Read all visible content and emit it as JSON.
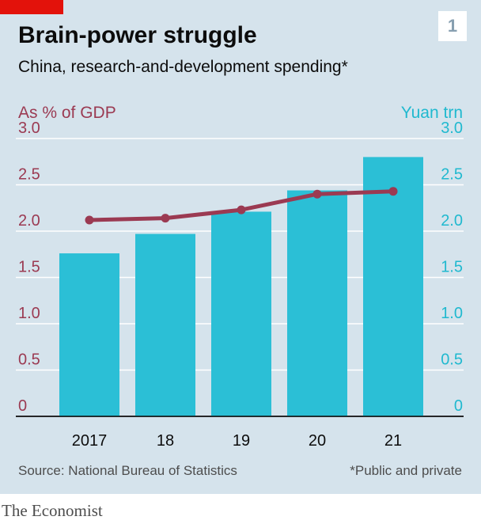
{
  "header": {
    "title": "Brain-power struggle",
    "subtitle": "China, research-and-development spending*",
    "chart_number": "1"
  },
  "footer": {
    "source": "Source: National Bureau of Statistics",
    "footnote": "*Public and private",
    "brand": "The Economist"
  },
  "colors": {
    "accent_red": "#e3120b",
    "panel_background": "#d5e3ec",
    "bar": "#2bbfd6",
    "line": "#9b3a52",
    "left_axis": "#9b3a52",
    "right_axis": "#20b9cf"
  },
  "chart_data": {
    "type": "bar",
    "categories": [
      "2017",
      "18",
      "19",
      "20",
      "21"
    ],
    "y_left": {
      "label": "As % of GDP",
      "ylim": [
        0,
        3.0
      ],
      "ticks": [
        "3.0",
        "2.5",
        "2.0",
        "1.5",
        "1.0",
        "0.5",
        "0"
      ]
    },
    "y_right": {
      "label": "Yuan trn",
      "ylim": [
        0,
        3.0
      ],
      "ticks": [
        "3.0",
        "2.5",
        "2.0",
        "1.5",
        "1.0",
        "0.5",
        "0"
      ]
    },
    "series": [
      {
        "type": "bar",
        "axis": "right",
        "values": [
          1.76,
          1.97,
          2.21,
          2.44,
          2.8
        ]
      },
      {
        "type": "line",
        "axis": "left",
        "values": [
          2.12,
          2.14,
          2.23,
          2.4,
          2.43
        ]
      }
    ],
    "grid": true,
    "legend": "none"
  }
}
